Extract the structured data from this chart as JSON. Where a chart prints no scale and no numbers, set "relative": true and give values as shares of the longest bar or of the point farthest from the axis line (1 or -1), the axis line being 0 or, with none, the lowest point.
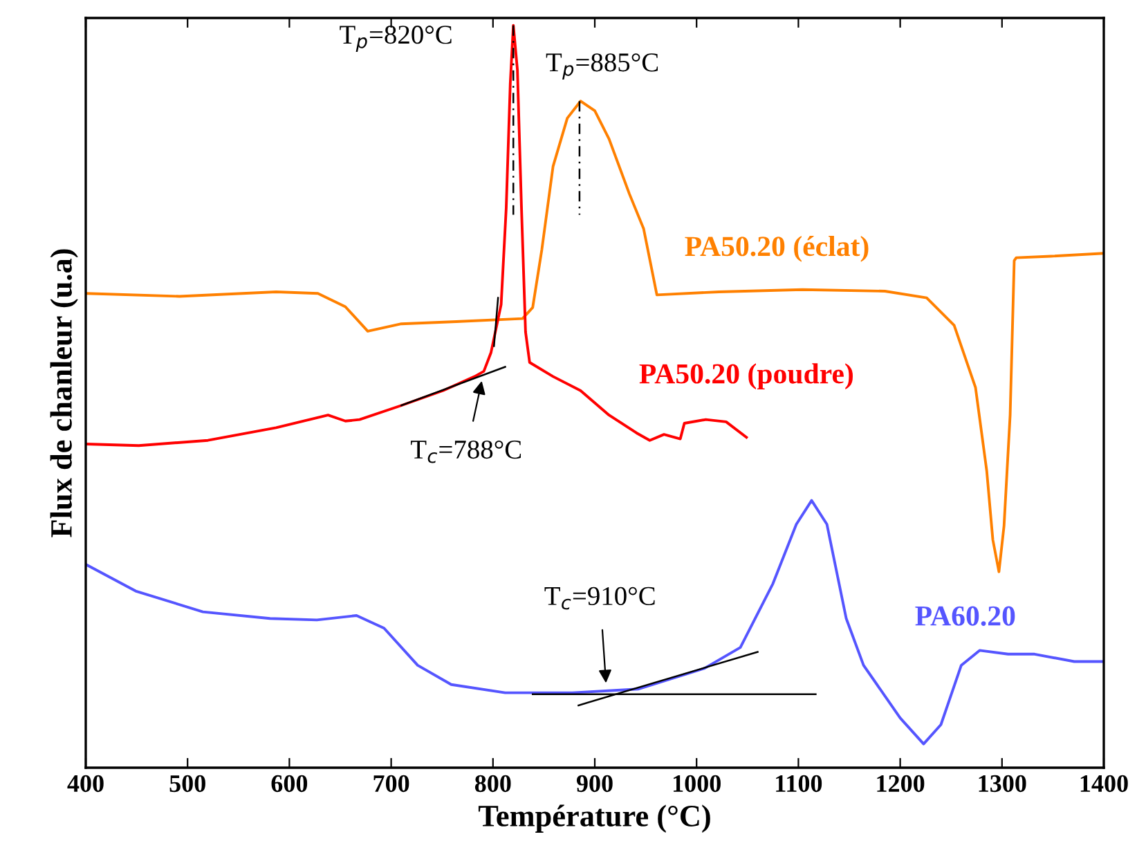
{
  "chart_data": {
    "type": "line",
    "relative": true,
    "xlabel": "Température (°C)",
    "ylabel": "Flux de chanleur (u.a)",
    "xlim": [
      400,
      1400
    ],
    "xticks": [
      400,
      500,
      600,
      700,
      800,
      900,
      1000,
      1100,
      1200,
      1300,
      1400
    ],
    "grid": false,
    "legend": false,
    "tick_labels": "x",
    "series": [
      {
        "name": "PA50.20 (éclat)",
        "color": "#ff8000",
        "x": [
          400,
          492,
          587,
          628,
          655,
          677,
          710,
          764,
          829,
          839,
          848,
          859,
          873,
          886,
          900,
          914,
          934,
          948,
          961,
          1022,
          1104,
          1185,
          1226,
          1253,
          1274,
          1285,
          1291,
          1297,
          1302,
          1308,
          1312,
          1314,
          1348,
          1400
        ],
        "values": [
          0.639,
          0.635,
          0.641,
          0.639,
          0.621,
          0.588,
          0.598,
          0.601,
          0.605,
          0.62,
          0.698,
          0.81,
          0.875,
          0.898,
          0.885,
          0.847,
          0.773,
          0.726,
          0.637,
          0.641,
          0.644,
          0.642,
          0.633,
          0.596,
          0.512,
          0.4,
          0.307,
          0.264,
          0.326,
          0.475,
          0.683,
          0.687,
          0.689,
          0.693
        ]
      },
      {
        "name": "PA50.20 (poudre)",
        "color": "#ff0000",
        "x": [
          400,
          452,
          520,
          587,
          638,
          655,
          669,
          710,
          751,
          782,
          791,
          798,
          808,
          813,
          817,
          820,
          824,
          828,
          832,
          836,
          859,
          886,
          914,
          941,
          954,
          968,
          984,
          988,
          1009,
          1029,
          1049
        ],
        "values": [
          0.436,
          0.434,
          0.441,
          0.458,
          0.475,
          0.467,
          0.469,
          0.488,
          0.508,
          0.527,
          0.534,
          0.559,
          0.624,
          0.754,
          0.922,
          1.0,
          0.94,
          0.754,
          0.587,
          0.546,
          0.527,
          0.508,
          0.475,
          0.451,
          0.441,
          0.449,
          0.443,
          0.464,
          0.469,
          0.466,
          0.445
        ]
      },
      {
        "name": "PA60.20",
        "color": "#5555ff",
        "x": [
          400,
          449,
          515,
          581,
          627,
          666,
          693,
          726,
          759,
          812,
          878,
          943,
          1008,
          1043,
          1075,
          1098,
          1113,
          1128,
          1147,
          1164,
          1200,
          1223,
          1240,
          1260,
          1278,
          1306,
          1332,
          1371,
          1400
        ],
        "values": [
          0.274,
          0.238,
          0.21,
          0.201,
          0.199,
          0.205,
          0.188,
          0.138,
          0.112,
          0.101,
          0.101,
          0.106,
          0.134,
          0.162,
          0.248,
          0.328,
          0.36,
          0.328,
          0.201,
          0.138,
          0.067,
          0.032,
          0.058,
          0.138,
          0.158,
          0.153,
          0.153,
          0.143,
          0.143
        ]
      },
      {
        "color": "#000000",
        "x": [
          710,
          812
        ],
        "values": [
          0.488,
          0.54
        ]
      },
      {
        "color": "#000000",
        "x": [
          801,
          805
        ],
        "values": [
          0.568,
          0.633
        ]
      },
      {
        "color": "#000000",
        "x": [
          839,
          1117
        ],
        "values": [
          0.099,
          0.099
        ]
      },
      {
        "color": "#000000",
        "x": [
          884,
          1060
        ],
        "values": [
          0.084,
          0.156
        ]
      },
      {
        "color": "#000000",
        "x": [
          820,
          820
        ],
        "values": [
          1.0,
          0.745
        ],
        "line_style": "dashed"
      },
      {
        "color": "#000000",
        "x": [
          885,
          885
        ],
        "values": [
          0.898,
          0.745
        ],
        "line_style": "dashed"
      }
    ],
    "annotations": [
      {
        "text": "T$_{p}$=820°C",
        "x": 820,
        "y": 1.0
      },
      {
        "text": "T$_{p}$=885°C",
        "x": 885,
        "y": 0.898
      },
      {
        "text": "T$_{c}$=788°C",
        "x": 789,
        "y": 0.521
      },
      {
        "text": "T$_{c}$=910°C",
        "x": 911,
        "y": 0.114
      }
    ]
  }
}
